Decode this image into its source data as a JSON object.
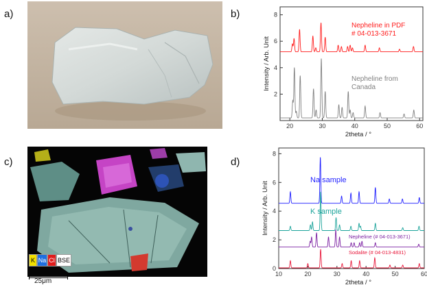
{
  "panels": {
    "a": "a)",
    "b": "b)",
    "c": "c)",
    "d": "d)"
  },
  "mineral_map": {
    "legend": [
      {
        "label": "K",
        "color": "#f2e000",
        "text_color": "#000000"
      },
      {
        "label": "Na",
        "color": "#1e6fe0",
        "text_color": "#ffffff"
      },
      {
        "label": "Cl",
        "color": "#e01b1b",
        "text_color": "#ffffff"
      },
      {
        "label": "BSE",
        "color": "#ffffff",
        "text_color": "#000000"
      }
    ],
    "scale_label": "25μm"
  },
  "chart_data": [
    {
      "type": "line",
      "panel": "b",
      "xlabel": "2theta / °",
      "ylabel": "Intensity / Arb. Unit",
      "xlim": [
        17,
        61
      ],
      "ylim": [
        0,
        8.6
      ],
      "xticks": [
        20,
        30,
        40,
        50,
        60
      ],
      "yticks": [
        2,
        4,
        6,
        8
      ],
      "grid": false,
      "series": [
        {
          "name": "Nepheline in PDF # 04-013-3671",
          "color": "#ff1a1a",
          "baseline": 5.2,
          "peaks": [
            [
              20.8,
              0.6
            ],
            [
              21.3,
              1.0
            ],
            [
              23.0,
              1.7
            ],
            [
              27.1,
              1.2
            ],
            [
              28.0,
              0.3
            ],
            [
              29.6,
              2.2
            ],
            [
              30.9,
              1.1
            ],
            [
              34.9,
              0.5
            ],
            [
              35.9,
              0.4
            ],
            [
              37.8,
              0.4
            ],
            [
              38.6,
              0.5
            ],
            [
              39.3,
              0.3
            ],
            [
              43.2,
              0.5
            ],
            [
              47.6,
              0.3
            ],
            [
              53.8,
              0.2
            ],
            [
              58.1,
              0.4
            ]
          ]
        },
        {
          "name": "Nepheline from Canada",
          "color": "#808080",
          "baseline": 0.2,
          "peaks": [
            [
              20.9,
              1.3
            ],
            [
              21.4,
              3.8
            ],
            [
              22.0,
              0.5
            ],
            [
              23.2,
              3.2
            ],
            [
              27.3,
              2.2
            ],
            [
              28.1,
              0.6
            ],
            [
              29.7,
              4.5
            ],
            [
              30.9,
              2.0
            ],
            [
              35.1,
              1.0
            ],
            [
              36.1,
              0.8
            ],
            [
              38.0,
              2.0
            ],
            [
              38.6,
              0.6
            ],
            [
              39.5,
              0.4
            ],
            [
              43.2,
              0.9
            ],
            [
              47.8,
              0.4
            ],
            [
              55.2,
              0.3
            ],
            [
              58.2,
              0.6
            ]
          ]
        }
      ]
    },
    {
      "type": "line",
      "panel": "d",
      "xlabel": "2theta / °",
      "ylabel": "Intensity / Arb. Unit",
      "xlim": [
        10,
        60
      ],
      "ylim": [
        0,
        8.4
      ],
      "xticks": [
        10,
        20,
        30,
        40,
        50,
        60
      ],
      "yticks": [
        0,
        2,
        4,
        6,
        8
      ],
      "grid": false,
      "series": [
        {
          "name": "Na sample",
          "color": "#1f1fff",
          "baseline": 4.55,
          "peaks": [
            [
              14.0,
              0.8
            ],
            [
              24.3,
              3.2
            ],
            [
              31.6,
              0.5
            ],
            [
              34.8,
              0.7
            ],
            [
              37.6,
              0.8
            ],
            [
              43.2,
              1.1
            ],
            [
              48.0,
              0.3
            ],
            [
              52.5,
              0.3
            ],
            [
              58.3,
              0.4
            ]
          ]
        },
        {
          "name": "K sample",
          "color": "#1aa39a",
          "baseline": 2.65,
          "peaks": [
            [
              14.0,
              0.3
            ],
            [
              20.9,
              0.4
            ],
            [
              21.6,
              0.6
            ],
            [
              24.4,
              2.7
            ],
            [
              29.7,
              0.9
            ],
            [
              30.9,
              0.4
            ],
            [
              34.8,
              0.3
            ],
            [
              37.6,
              0.5
            ],
            [
              38.1,
              0.3
            ],
            [
              43.2,
              0.5
            ],
            [
              52.6,
              0.2
            ],
            [
              58.2,
              0.3
            ]
          ]
        },
        {
          "name": "Nepheline (# 04-013-3671)",
          "color": "#7b1fa2",
          "baseline": 1.5,
          "peaks": [
            [
              20.8,
              0.4
            ],
            [
              21.3,
              0.7
            ],
            [
              23.0,
              1.0
            ],
            [
              27.1,
              0.7
            ],
            [
              29.6,
              1.2
            ],
            [
              30.9,
              0.7
            ],
            [
              34.9,
              0.3
            ],
            [
              35.9,
              0.3
            ],
            [
              37.8,
              0.3
            ],
            [
              38.6,
              0.4
            ],
            [
              43.2,
              0.3
            ],
            [
              58.1,
              0.2
            ]
          ]
        },
        {
          "name": "Sodalite (# 04-013-4831)",
          "color": "#e8173a",
          "baseline": 0.05,
          "peaks": [
            [
              14.0,
              0.5
            ],
            [
              20.0,
              0.3
            ],
            [
              24.4,
              1.3
            ],
            [
              31.8,
              0.3
            ],
            [
              34.9,
              0.5
            ],
            [
              37.8,
              0.5
            ],
            [
              43.0,
              0.7
            ],
            [
              48.2,
              0.2
            ],
            [
              52.6,
              0.2
            ],
            [
              58.3,
              0.3
            ]
          ]
        }
      ]
    }
  ]
}
